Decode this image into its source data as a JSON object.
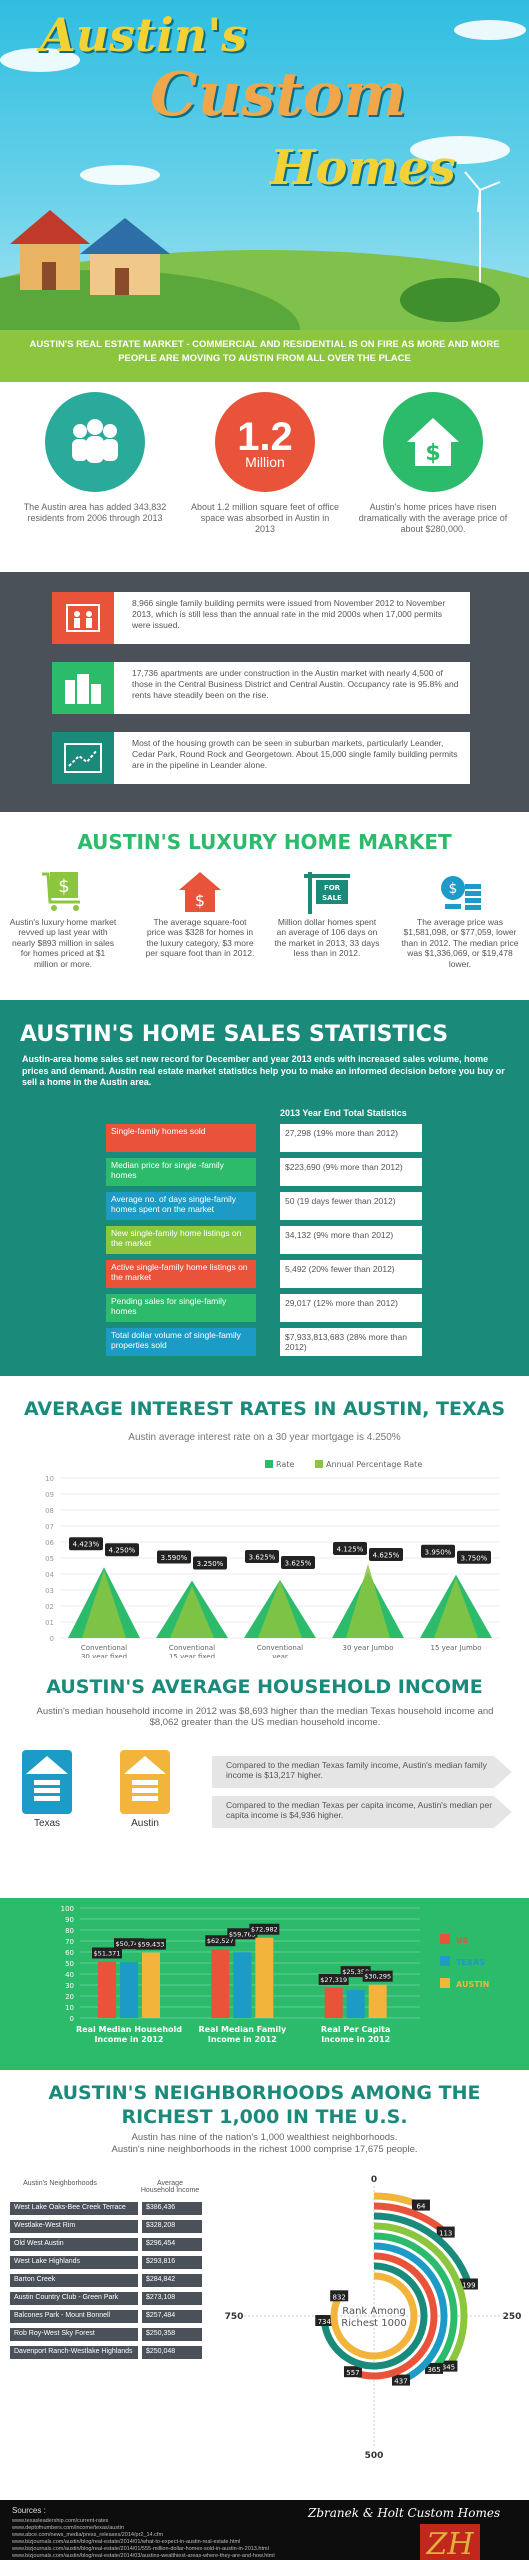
{
  "hero": {
    "line1": "Austin's",
    "line2": "Custom",
    "line3": "Homes"
  },
  "subtitle": "AUSTIN'S REAL ESTATE MARKET - COMMERCIAL AND RESIDENTIAL IS ON FIRE AS MORE AND MORE PEOPLE ARE MOVING TO AUSTIN FROM ALL OVER THE PLACE",
  "facts": [
    {
      "text": "The Austin area has added 343,832 residents from 2006 through 2013",
      "color": "#2aaa9a"
    },
    {
      "big": "1.2",
      "small": "Million",
      "text": "About 1.2 million square feet of office space was absorbed in Austin in 2013",
      "color": "#e8533a"
    },
    {
      "text": "Austin's home prices have risen dramatically with the average price of about $280,000.",
      "color": "#2cba6b"
    }
  ],
  "bullets": [
    {
      "text": "8,966 single family building permits were issued from November 2012 to November 2013, which is still less than the annual rate in the mid 2000s when 17,000 permits were issued.",
      "color": "#e8533a"
    },
    {
      "text": "17,736 apartments are under construction in the Austin market with nearly 4,500 of those in the Central Business District and Central Austin. Occupancy rate is 95.8% and rents have steadily been on the rise.",
      "color": "#2cba6b"
    },
    {
      "text": "Most of the housing growth can be seen in suburban markets, particularly Leander, Cedar Park, Round Rock and Georgetown. About 15,000 single family building permits are in the pipeline in Leander alone.",
      "color": "#1a8a7b"
    }
  ],
  "lux": {
    "title": "AUSTIN'S LUXURY HOME MARKET",
    "items": [
      "Austin's luxury home market revved up last year with nearly $893 million in sales for homes priced at $1 million or more.",
      "The average square-foot price was $328 for homes in the luxury category, $3 more per square foot than in 2012.",
      "Million dollar homes spent an average of 106 days on the market in 2013, 33 days less than in 2012.",
      "The average price was $1,581,098, or $77,059, lower than in 2012. The median price was $1,336,069, or $19,478 lower."
    ],
    "sign": "FOR SALE"
  },
  "stats": {
    "title": "AUSTIN'S HOME SALES STATISTICS",
    "intro": "Austin-area home sales set new record for December and year 2013 ends with increased sales volume, home prices and demand. Austin real estate market statistics help you to make an informed decision before you buy or sell a home in the Austin area.",
    "header": "2013 Year End Total Statistics",
    "rows": [
      {
        "label": "Single-family homes sold",
        "value": "27,298 (19% more than 2012)",
        "color": "#e8533a"
      },
      {
        "label": "Median price for single -family homes",
        "value": "$223,690 (9% more than 2012)",
        "color": "#2cba6b"
      },
      {
        "label": "Average no. of days single-family homes spent on the market",
        "value": "50 (19 days fewer than 2012)",
        "color": "#1c9bc6"
      },
      {
        "label": "New single-family home listings on the market",
        "value": "34,132 (9% more than 2012)",
        "color": "#8cc63f"
      },
      {
        "label": "Active single-family home listings on the market",
        "value": "5,492 (20% fewer than 2012)",
        "color": "#e8533a"
      },
      {
        "label": "Pending sales for single-family homes",
        "value": "29,017 (12% more than 2012)",
        "color": "#2cba6b"
      },
      {
        "label": "Total dollar volume of single-family properties sold",
        "value": "$7,933,813,683 (28% more than 2012)",
        "color": "#1c9bc6"
      }
    ]
  },
  "rates": {
    "title": "AVERAGE INTEREST RATES IN AUSTIN, TEXAS",
    "subtitle": "Austin average interest rate on a 30 year mortgage is 4.250%"
  },
  "income": {
    "title": "AUSTIN'S AVERAGE HOUSEHOLD INCOME",
    "intro": "Austin's median household income in 2012 was $8,693 higher than the median Texas household income and $8,062 greater than the US median household income.",
    "cmp1": "Compared to the median Texas family income, Austin's median family income is $13,217 higher.",
    "cmp2": "Compared to the median Texas per capita income, Austin's median per capita income is $4,936 higher.",
    "labels": [
      "Texas",
      "Austin"
    ]
  },
  "nb": {
    "title1": "AUSTIN'S NEIGHBORHOODS AMONG THE",
    "title2": "RICHEST 1,000 IN THE U.S.",
    "sub1": "Austin has nine of the nation's 1,000 wealthiest neighborhoods.",
    "sub2": "Austin's nine neighborhoods in the richest 1000 comprise 17,675 people.",
    "col1": "Austin's Neighborhoods",
    "col2": "Average Household Income",
    "rows": [
      [
        "West Lake Oaks-Bee Creek Terrace",
        "$386,436"
      ],
      [
        "Westlake-West Rim",
        "$328,208"
      ],
      [
        "Old West Austin",
        "$296,454"
      ],
      [
        "West Lake Highlands",
        "$293,816"
      ],
      [
        "Barton Creek",
        "$284,842"
      ],
      [
        "Austin Country Club - Green Park",
        "$273,108"
      ],
      [
        "Balcones Park - Mount Bonnell",
        "$257,484"
      ],
      [
        "Rob Roy-West Sky Forest",
        "$250,358"
      ],
      [
        "Davenport Ranch-Westlake Highlands",
        "$250,048"
      ]
    ],
    "center": "Rank Among Richest 1000",
    "scale": [
      "0",
      "250",
      "500",
      "750"
    ],
    "ranks": [
      "64",
      "113",
      "199",
      "345",
      "365",
      "437",
      "557",
      "734",
      "832"
    ]
  },
  "sources": {
    "label": "Sources :",
    "items": [
      "www.texasleadership.com/current-rates",
      "www.deptofnumbers.com/income/texas/austin",
      "www.abce.com/news_media/press_releases/2014/pr2_14.cfm",
      "www.bizjournals.com/austin/blog/real-estate/2014/01/what-to-expect-in-austin-real-estate.html",
      "www.bizjournals.com/austin/blog/real-estate/2014/01/555-million-dollar-homes-sold-in-austin-in-2013.html",
      "www.bizjournals.com/austin/blog/real-estate/2014/03/austins-wealthiest-areas-where-they-are-and-how.html"
    ],
    "brand": "Zbranek & Holt Custom Homes"
  },
  "chart_data": [
    {
      "type": "area",
      "title": "",
      "subtitle": "",
      "categories": [
        "Conventional 30 year fixed",
        "Conventional 15 year fixed",
        "Conventional year adjustable-rate mortgage",
        "30 year Jumbo",
        "15 year Jumbo"
      ],
      "series": [
        {
          "name": "Rate",
          "values": [
            4.423,
            3.59,
            3.625,
            4.125,
            3.95
          ]
        },
        {
          "name": "Annual Percentage Rate",
          "values": [
            4.25,
            3.25,
            3.625,
            4.625,
            3.75
          ]
        }
      ],
      "yticks": [
        "0",
        "01",
        "02",
        "03",
        "04",
        "05",
        "06",
        "07",
        "08",
        "09",
        "10"
      ],
      "data_labels": [
        "4.423%",
        "4.250%",
        "3.590%",
        "3.250%",
        "3.625%",
        "3.625%",
        "4.125%",
        "4.625%",
        "3.950%",
        "3.750%"
      ],
      "legend": "top-right"
    },
    {
      "type": "bar",
      "categories": [
        "Real Median Household Income in 2012",
        "Real Median Family Income in 2012",
        "Real Per Capita Income in 2012"
      ],
      "series": [
        {
          "name": "US",
          "values": [
            51371,
            62527,
            27319
          ]
        },
        {
          "name": "TEXAS",
          "values": [
            50740,
            59765,
            25358
          ]
        },
        {
          "name": "AUSTIN",
          "values": [
            59433,
            72982,
            30295
          ]
        }
      ],
      "labels": [
        [
          "$51,371",
          "$50,740",
          "$59,433"
        ],
        [
          "$62,527",
          "$59,765",
          "$72,982"
        ],
        [
          "$27,319",
          "$25,358",
          "$30,295"
        ]
      ],
      "yticks": [
        "0",
        "10",
        "20",
        "30",
        "40",
        "50",
        "60",
        "70",
        "80",
        "90",
        "100"
      ],
      "legend": "right"
    },
    {
      "type": "pie",
      "note": "radial rank chart",
      "values": [
        64,
        113,
        199,
        345,
        365,
        437,
        557,
        734,
        832
      ],
      "max": 1000
    }
  ]
}
